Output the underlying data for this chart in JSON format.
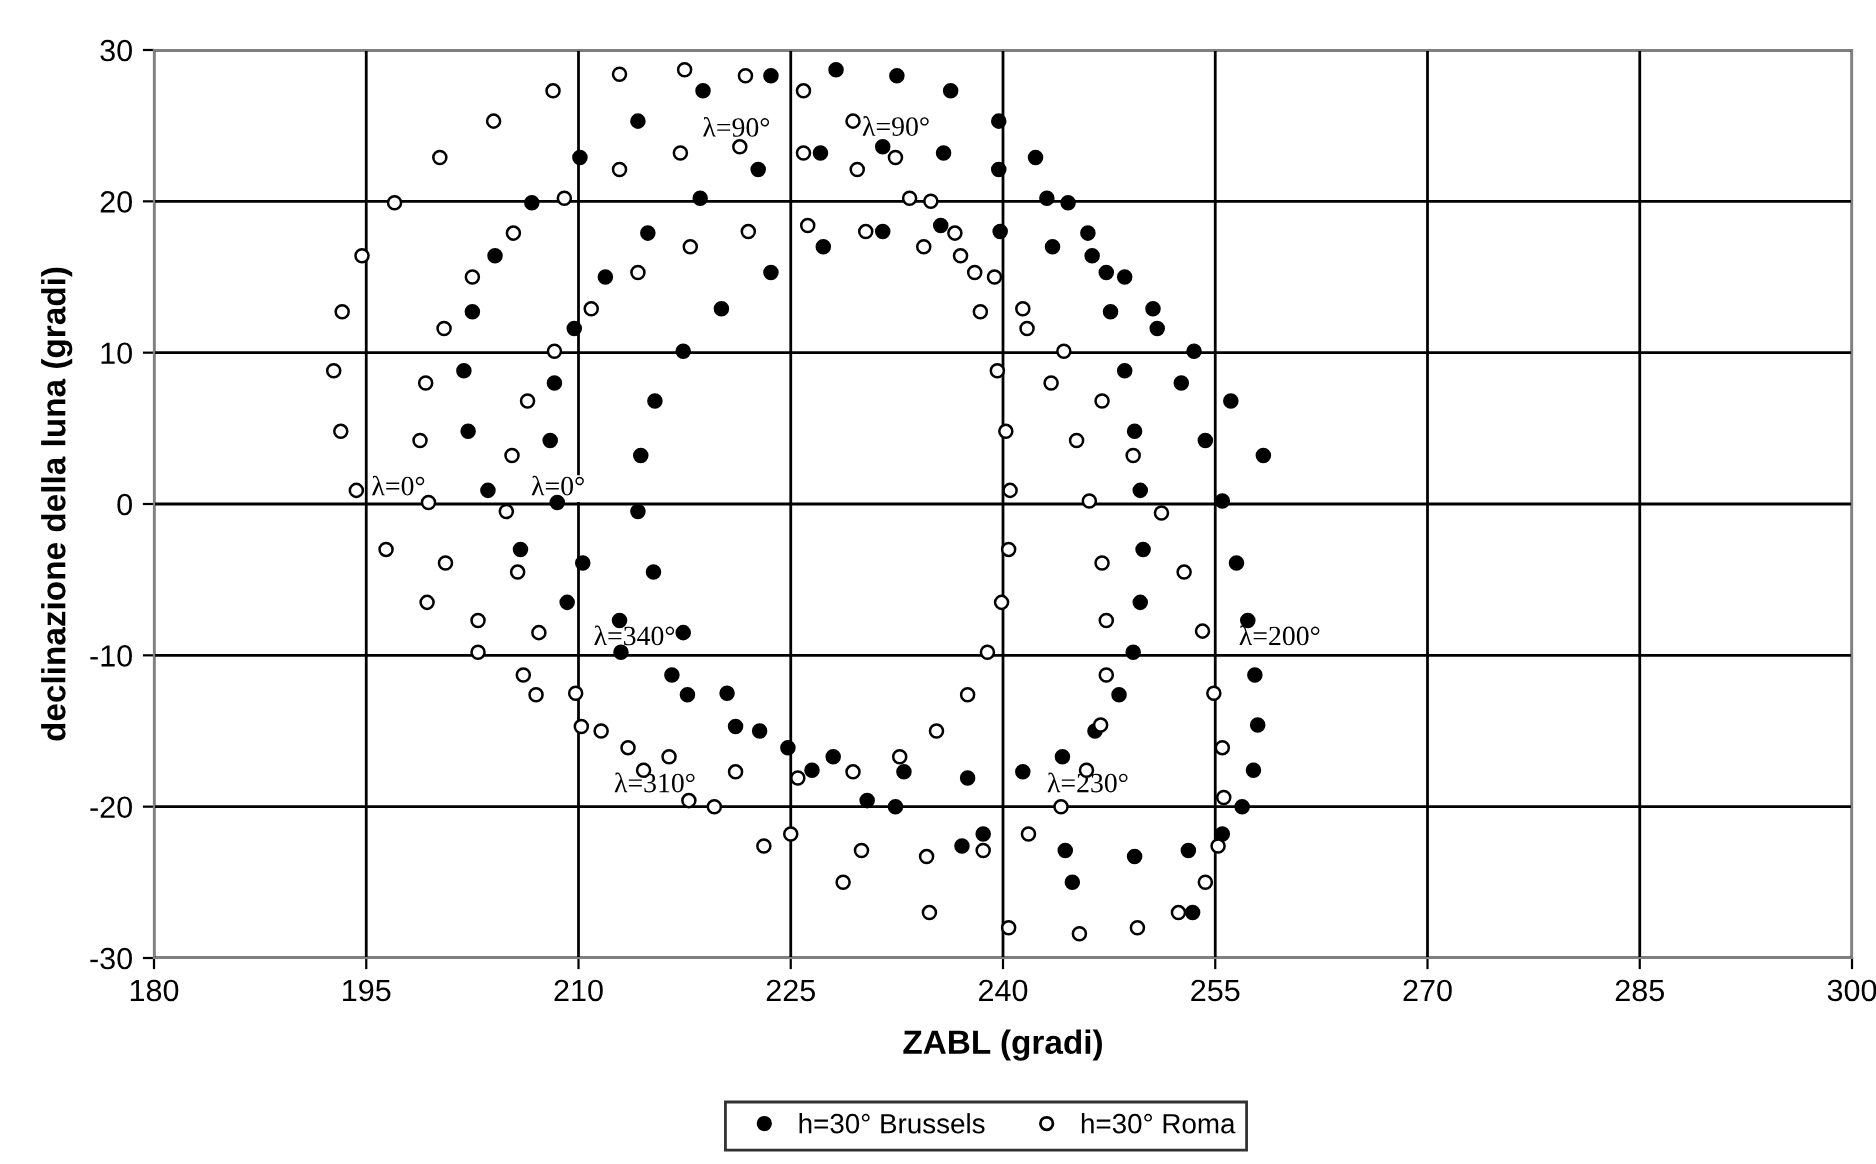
{
  "chart_data": {
    "type": "scatter",
    "xlabel": "ZABL (gradi)",
    "ylabel": "declinazione della luna (gradi)",
    "xlim": [
      180,
      300
    ],
    "xticks": [
      180,
      195,
      210,
      225,
      240,
      255,
      270,
      285,
      300
    ],
    "ylim": [
      -30,
      30
    ],
    "yticks": [
      -30,
      -20,
      -10,
      0,
      10,
      20,
      30
    ],
    "grid": true,
    "legend": "bottom",
    "marker": "circle",
    "series": [
      {
        "name": "h=30° Brussels",
        "color": "#000000",
        "x": [
          218.8,
          223.6,
          228.2,
          232.5,
          236.3,
          239.7,
          222.7,
          227.1,
          231.5,
          235.8,
          239.7,
          242.3,
          218.6,
          243.1,
          227.3,
          231.5,
          235.6,
          239.8,
          243.5,
          223.6,
          220.1,
          214.2,
          210.1,
          206.7,
          214.9,
          204.1,
          211.9,
          202.5,
          209.7,
          217.4,
          201.9,
          208.3,
          215.4,
          202.2,
          208.0,
          214.4,
          203.6,
          208.5,
          214.2,
          205.9,
          210.3,
          215.3,
          209.2,
          212.9,
          217.4,
          213.0,
          216.6,
          217.7,
          220.5,
          221.1,
          222.8,
          224.8,
          226.5,
          228.0,
          230.4,
          232.4,
          233.0,
          237.5,
          241.4,
          238.6,
          237.1,
          244.6,
          246.0,
          246.3,
          247.3,
          248.6,
          247.6,
          250.6,
          250.9,
          253.5,
          248.6,
          252.6,
          256.1,
          249.3,
          254.3,
          258.4,
          249.7,
          255.5,
          249.9,
          256.5,
          249.7,
          257.3,
          249.2,
          257.8,
          248.2,
          258.0,
          246.5,
          244.2,
          257.7,
          256.9,
          255.5,
          244.4,
          249.3,
          253.1,
          244.9,
          253.4
        ],
        "values": [
          27.3,
          28.3,
          28.7,
          28.3,
          27.3,
          25.3,
          22.1,
          23.2,
          23.6,
          23.2,
          22.1,
          22.9,
          20.2,
          20.2,
          17.0,
          18.0,
          18.4,
          18.0,
          17.0,
          15.3,
          12.9,
          25.3,
          22.9,
          19.9,
          17.9,
          16.4,
          15.0,
          12.7,
          11.6,
          10.1,
          8.8,
          8.0,
          6.8,
          4.8,
          4.2,
          3.2,
          0.9,
          0.1,
          -0.5,
          -3.0,
          -3.9,
          -4.5,
          -6.5,
          -7.7,
          -8.5,
          -9.8,
          -11.3,
          -12.6,
          -12.5,
          -14.7,
          -15.0,
          -16.1,
          -17.6,
          -16.7,
          -19.6,
          -20.0,
          -17.7,
          -18.1,
          -17.7,
          -21.8,
          -22.6,
          19.9,
          17.9,
          16.4,
          15.3,
          15.0,
          12.7,
          12.9,
          11.6,
          10.1,
          8.8,
          8.0,
          6.8,
          4.8,
          4.2,
          3.2,
          0.9,
          0.2,
          -3.0,
          -3.9,
          -6.5,
          -7.7,
          -9.8,
          -11.3,
          -12.6,
          -14.6,
          -15.0,
          -16.7,
          -17.6,
          -20.0,
          -21.8,
          -22.9,
          -23.3,
          -22.9,
          -25.0,
          -27.0
        ]
      },
      {
        "name": "h=30° Roma",
        "color": "#ffffff",
        "x": [
          212.9,
          217.5,
          208.2,
          204.0,
          217.2,
          200.2,
          212.9,
          197.0,
          209.0,
          205.4,
          217.9,
          194.7,
          202.5,
          214.2,
          193.3,
          210.9,
          200.5,
          208.3,
          192.7,
          199.2,
          206.4,
          193.2,
          198.8,
          205.3,
          194.3,
          199.4,
          204.9,
          196.4,
          200.6,
          205.7,
          199.3,
          202.9,
          207.2,
          202.9,
          206.1,
          207.0,
          209.8,
          210.2,
          211.6,
          213.5,
          216.4,
          214.6,
          217.8,
          221.8,
          225.9,
          229.4,
          221.4,
          225.9,
          229.7,
          232.4,
          233.4,
          234.9,
          222.0,
          226.2,
          230.3,
          234.4,
          236.6,
          237.0,
          238.0,
          239.4,
          238.4,
          241.4,
          241.7,
          239.6,
          243.4,
          240.2,
          240.5,
          240.4,
          239.9,
          238.9,
          237.5,
          235.3,
          232.7,
          229.4,
          225.5,
          221.1,
          219.6,
          225.0,
          223.1,
          230.0,
          228.7,
          234.6,
          234.8,
          238.6,
          241.8,
          240.4,
          244.3,
          247.0,
          245.2,
          249.2,
          246.1,
          251.2,
          247.0,
          252.8,
          247.3,
          254.1,
          247.3,
          254.9,
          246.9,
          255.5,
          245.9,
          255.6,
          244.1,
          255.2,
          254.3,
          252.4,
          249.5,
          245.4
        ],
        "values": [
          28.4,
          28.7,
          27.3,
          25.3,
          23.2,
          22.9,
          22.1,
          19.9,
          20.2,
          17.9,
          17.0,
          16.4,
          15.0,
          15.3,
          12.7,
          12.9,
          11.6,
          10.1,
          8.8,
          8.0,
          6.8,
          4.8,
          4.2,
          3.2,
          0.9,
          0.1,
          -0.5,
          -3.0,
          -3.9,
          -4.5,
          -6.5,
          -7.7,
          -8.5,
          -9.8,
          -11.3,
          -12.6,
          -12.5,
          -14.7,
          -15.0,
          -16.1,
          -16.7,
          -17.6,
          -19.6,
          28.3,
          27.3,
          25.3,
          23.6,
          23.2,
          22.1,
          22.9,
          20.2,
          20.0,
          18.0,
          18.4,
          18.0,
          17.0,
          17.9,
          16.4,
          15.3,
          15.0,
          12.7,
          12.9,
          11.6,
          8.8,
          8.0,
          4.8,
          0.9,
          -3.0,
          -6.5,
          -9.8,
          -12.6,
          -15.0,
          -16.7,
          -17.7,
          -18.1,
          -17.7,
          -20.0,
          -21.8,
          -22.6,
          -22.9,
          -25.0,
          -23.3,
          -27.0,
          -22.9,
          -21.8,
          -28.0,
          10.1,
          6.8,
          4.2,
          3.2,
          0.2,
          -0.6,
          -3.9,
          -4.5,
          -7.7,
          -8.4,
          -11.3,
          -12.5,
          -14.6,
          -16.1,
          -17.6,
          -19.4,
          -20.0,
          -22.6,
          -25.0,
          -27.0,
          -28.0,
          -28.4
        ]
      }
    ],
    "annotations": [
      "λ=90°",
      "λ=90°",
      "λ=0°",
      "λ=0°",
      "λ=340°",
      "λ=310°",
      "λ=230°",
      "λ=200°"
    ]
  }
}
